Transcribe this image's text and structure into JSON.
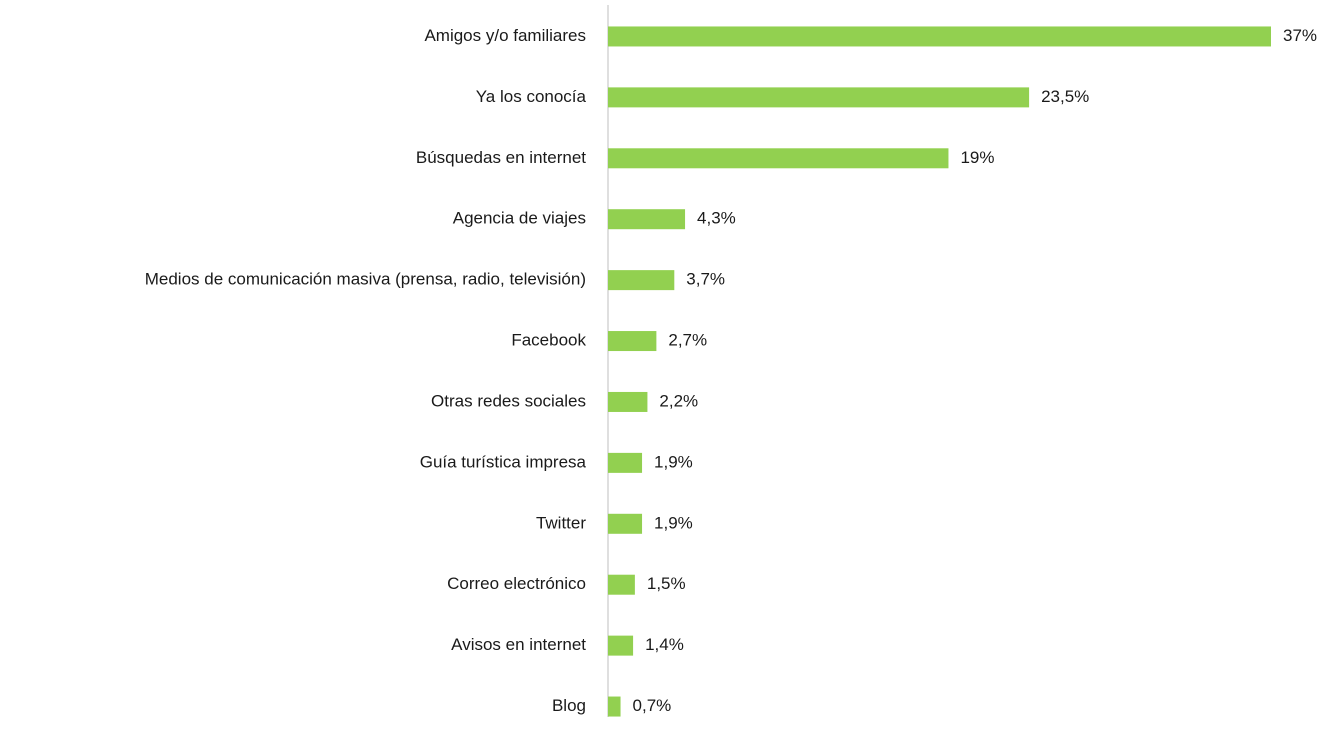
{
  "chart_data": {
    "type": "bar",
    "orientation": "horizontal",
    "categories": [
      "Amigos y/o familiares",
      "Ya los conocía",
      "Búsquedas en internet",
      "Agencia de viajes",
      "Medios de comunicación masiva (prensa, radio, televisión)",
      "Facebook",
      "Otras redes sociales",
      "Guía turística impresa",
      "Twitter",
      "Correo electrónico",
      "Avisos en internet",
      "Blog"
    ],
    "values": [
      37,
      23.5,
      19,
      4.3,
      3.7,
      2.7,
      2.2,
      1.9,
      1.9,
      1.5,
      1.4,
      0.7
    ],
    "value_labels": [
      "37%",
      "23,5%",
      "19%",
      "4,3%",
      "3,7%",
      "2,7%",
      "2,2%",
      "1,9%",
      "1,9%",
      "1,5%",
      "1,4%",
      "0,7%"
    ],
    "color": "#92d050",
    "xlim": [
      0,
      37
    ]
  }
}
